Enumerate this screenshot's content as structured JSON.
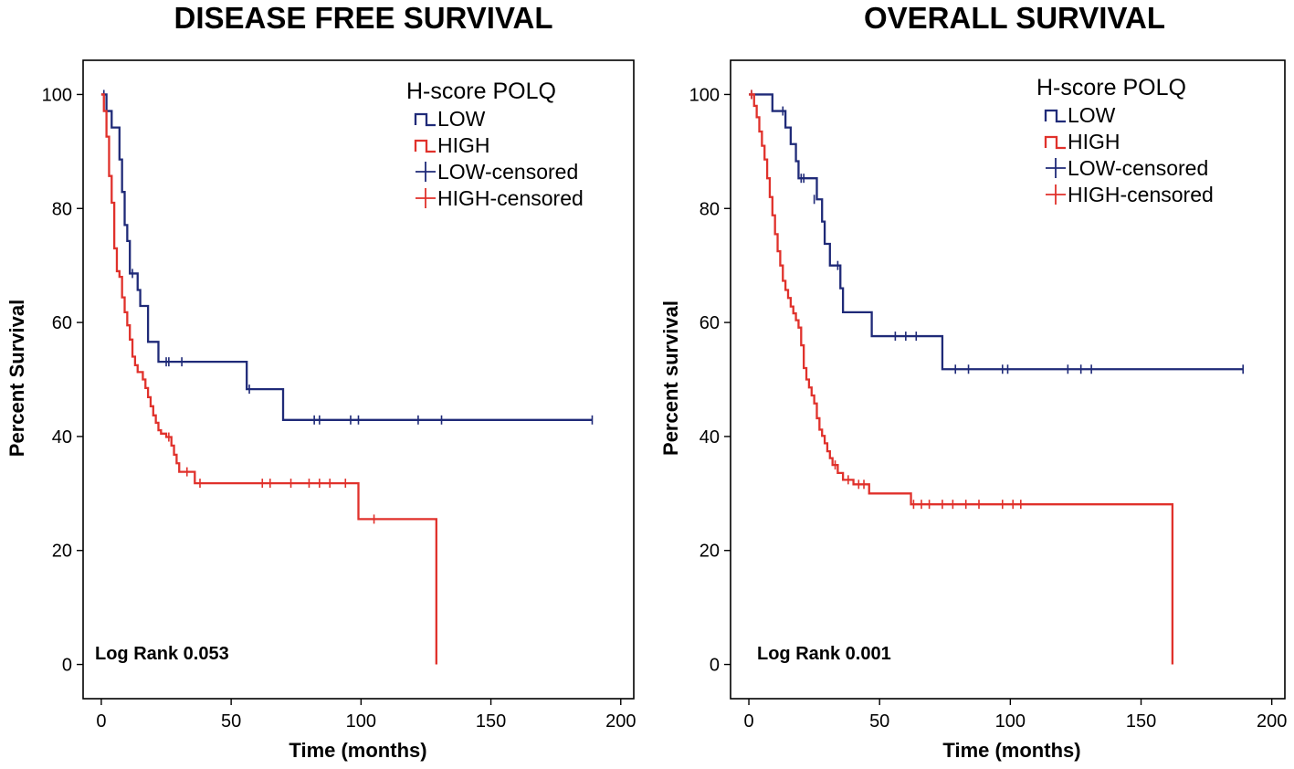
{
  "chart_data": [
    {
      "type": "line",
      "subtype": "kaplan-meier",
      "title": "DISEASE FREE SURVIVAL",
      "xlabel": "Time (months)",
      "ylabel": "Percent Survival",
      "xlim": [
        -7,
        205
      ],
      "ylim": [
        -6,
        106
      ],
      "xticks": [
        0,
        50,
        100,
        150,
        200
      ],
      "yticks": [
        0,
        20,
        40,
        60,
        80,
        100
      ],
      "legend_title": "H-score POLQ",
      "legend_position": "top-right",
      "annotation": "Log Rank 0.053",
      "legend": [
        {
          "label": "LOW",
          "kind": "line",
          "color": "#1f2a78"
        },
        {
          "label": "HIGH",
          "kind": "line",
          "color": "#e0312b"
        },
        {
          "label": "LOW-censored",
          "kind": "censor",
          "color": "#1f2a78"
        },
        {
          "label": "HIGH-censored",
          "kind": "censor",
          "color": "#e0312b"
        }
      ],
      "series": [
        {
          "name": "LOW",
          "color": "#1f2a78",
          "steps": [
            [
              0,
              100
            ],
            [
              2,
              97.1
            ],
            [
              4,
              94.2
            ],
            [
              7,
              88.6
            ],
            [
              8,
              82.9
            ],
            [
              9,
              77.1
            ],
            [
              10,
              74.3
            ],
            [
              11,
              68.6
            ],
            [
              14,
              65.7
            ],
            [
              15,
              62.9
            ],
            [
              18,
              56.6
            ],
            [
              22,
              53.1
            ],
            [
              56,
              48.3
            ],
            [
              70,
              42.9
            ],
            [
              189,
              42.9
            ]
          ],
          "censored": [
            [
              1,
              100
            ],
            [
              12,
              68.6
            ],
            [
              25,
              53.1
            ],
            [
              26,
              53.1
            ],
            [
              31,
              53.1
            ],
            [
              57,
              48.3
            ],
            [
              82,
              42.9
            ],
            [
              84,
              42.9
            ],
            [
              96,
              42.9
            ],
            [
              99,
              42.9
            ],
            [
              122,
              42.9
            ],
            [
              131,
              42.9
            ],
            [
              189,
              42.9
            ]
          ]
        },
        {
          "name": "HIGH",
          "color": "#e0312b",
          "steps": [
            [
              0,
              100
            ],
            [
              1,
              97.1
            ],
            [
              2,
              92.6
            ],
            [
              3,
              85.7
            ],
            [
              4,
              81
            ],
            [
              5,
              73
            ],
            [
              6,
              69
            ],
            [
              7,
              68
            ],
            [
              8,
              64.4
            ],
            [
              9,
              61.8
            ],
            [
              10,
              59.5
            ],
            [
              11,
              57
            ],
            [
              12,
              54
            ],
            [
              13,
              52.5
            ],
            [
              14,
              51.3
            ],
            [
              16,
              50
            ],
            [
              17,
              48.5
            ],
            [
              18,
              46.9
            ],
            [
              19,
              45.3
            ],
            [
              20,
              43.7
            ],
            [
              21,
              42.4
            ],
            [
              22,
              41.1
            ],
            [
              23,
              40.5
            ],
            [
              25,
              39.9
            ],
            [
              27,
              38.4
            ],
            [
              28,
              36.8
            ],
            [
              29,
              35.3
            ],
            [
              30,
              33.8
            ],
            [
              36,
              31.8
            ],
            [
              99,
              25.5
            ],
            [
              129,
              0
            ]
          ],
          "censored": [
            [
              26,
              39.9
            ],
            [
              33,
              33.8
            ],
            [
              38,
              31.8
            ],
            [
              62,
              31.8
            ],
            [
              65,
              31.8
            ],
            [
              73,
              31.8
            ],
            [
              80,
              31.8
            ],
            [
              84,
              31.8
            ],
            [
              88,
              31.8
            ],
            [
              94,
              31.8
            ],
            [
              105,
              25.5
            ]
          ]
        }
      ]
    },
    {
      "type": "line",
      "subtype": "kaplan-meier",
      "title": "OVERALL SURVIVAL",
      "xlabel": "Time (months)",
      "ylabel": "Percent survival",
      "xlim": [
        -7,
        205
      ],
      "ylim": [
        -6,
        106
      ],
      "xticks": [
        0,
        50,
        100,
        150,
        200
      ],
      "yticks": [
        0,
        20,
        40,
        60,
        80,
        100
      ],
      "legend_title": "H-score POLQ",
      "legend_position": "top-right",
      "annotation": "Log Rank 0.001",
      "legend": [
        {
          "label": "LOW",
          "kind": "line",
          "color": "#1f2a78"
        },
        {
          "label": "HIGH",
          "kind": "line",
          "color": "#e0312b"
        },
        {
          "label": "LOW-censored",
          "kind": "censor",
          "color": "#1f2a78"
        },
        {
          "label": "HIGH-censored",
          "kind": "censor",
          "color": "#e0312b"
        }
      ],
      "series": [
        {
          "name": "LOW",
          "color": "#1f2a78",
          "steps": [
            [
              0,
              100
            ],
            [
              9,
              97.1
            ],
            [
              14,
              94.2
            ],
            [
              16,
              91.3
            ],
            [
              18,
              88.3
            ],
            [
              19,
              85.3
            ],
            [
              26,
              81.6
            ],
            [
              28,
              77.7
            ],
            [
              29,
              73.8
            ],
            [
              31,
              70
            ],
            [
              35,
              66
            ],
            [
              36,
              61.8
            ],
            [
              47,
              57.6
            ],
            [
              74,
              51.8
            ],
            [
              189,
              51.8
            ]
          ],
          "censored": [
            [
              1,
              100
            ],
            [
              13,
              97.1
            ],
            [
              20,
              85.3
            ],
            [
              21,
              85.3
            ],
            [
              25,
              81.6
            ],
            [
              34,
              70
            ],
            [
              56,
              57.6
            ],
            [
              60,
              57.6
            ],
            [
              64,
              57.6
            ],
            [
              79,
              51.8
            ],
            [
              84,
              51.8
            ],
            [
              97,
              51.8
            ],
            [
              99,
              51.8
            ],
            [
              122,
              51.8
            ],
            [
              127,
              51.8
            ],
            [
              131,
              51.8
            ],
            [
              189,
              51.8
            ]
          ]
        },
        {
          "name": "HIGH",
          "color": "#e0312b",
          "steps": [
            [
              0,
              100
            ],
            [
              2,
              98
            ],
            [
              3,
              96
            ],
            [
              4,
              93.5
            ],
            [
              5,
              91
            ],
            [
              6,
              88.6
            ],
            [
              7,
              85.3
            ],
            [
              8,
              82
            ],
            [
              9,
              78.8
            ],
            [
              10,
              75.5
            ],
            [
              11,
              72.5
            ],
            [
              12,
              70
            ],
            [
              13,
              67.3
            ],
            [
              14,
              65.7
            ],
            [
              15,
              64.3
            ],
            [
              16,
              62.8
            ],
            [
              17,
              61.6
            ],
            [
              18,
              60.4
            ],
            [
              19,
              59.1
            ],
            [
              20,
              56
            ],
            [
              21,
              52
            ],
            [
              22,
              50
            ],
            [
              23,
              48.6
            ],
            [
              24,
              47.2
            ],
            [
              25,
              45.8
            ],
            [
              26,
              43.2
            ],
            [
              27,
              41.2
            ],
            [
              28,
              40.1
            ],
            [
              29,
              38.8
            ],
            [
              30,
              37.4
            ],
            [
              31,
              36.2
            ],
            [
              32,
              35
            ],
            [
              34,
              33.6
            ],
            [
              36,
              32.4
            ],
            [
              40,
              31.6
            ],
            [
              46,
              30
            ],
            [
              62,
              28.1
            ],
            [
              162,
              0
            ]
          ],
          "censored": [
            [
              1,
              100
            ],
            [
              33,
              35
            ],
            [
              38,
              32.4
            ],
            [
              42,
              31.6
            ],
            [
              44,
              31.6
            ],
            [
              63,
              28.1
            ],
            [
              66,
              28.1
            ],
            [
              69,
              28.1
            ],
            [
              74,
              28.1
            ],
            [
              78,
              28.1
            ],
            [
              83,
              28.1
            ],
            [
              88,
              28.1
            ],
            [
              97,
              28.1
            ],
            [
              101,
              28.1
            ],
            [
              104,
              28.1
            ]
          ]
        }
      ]
    }
  ]
}
